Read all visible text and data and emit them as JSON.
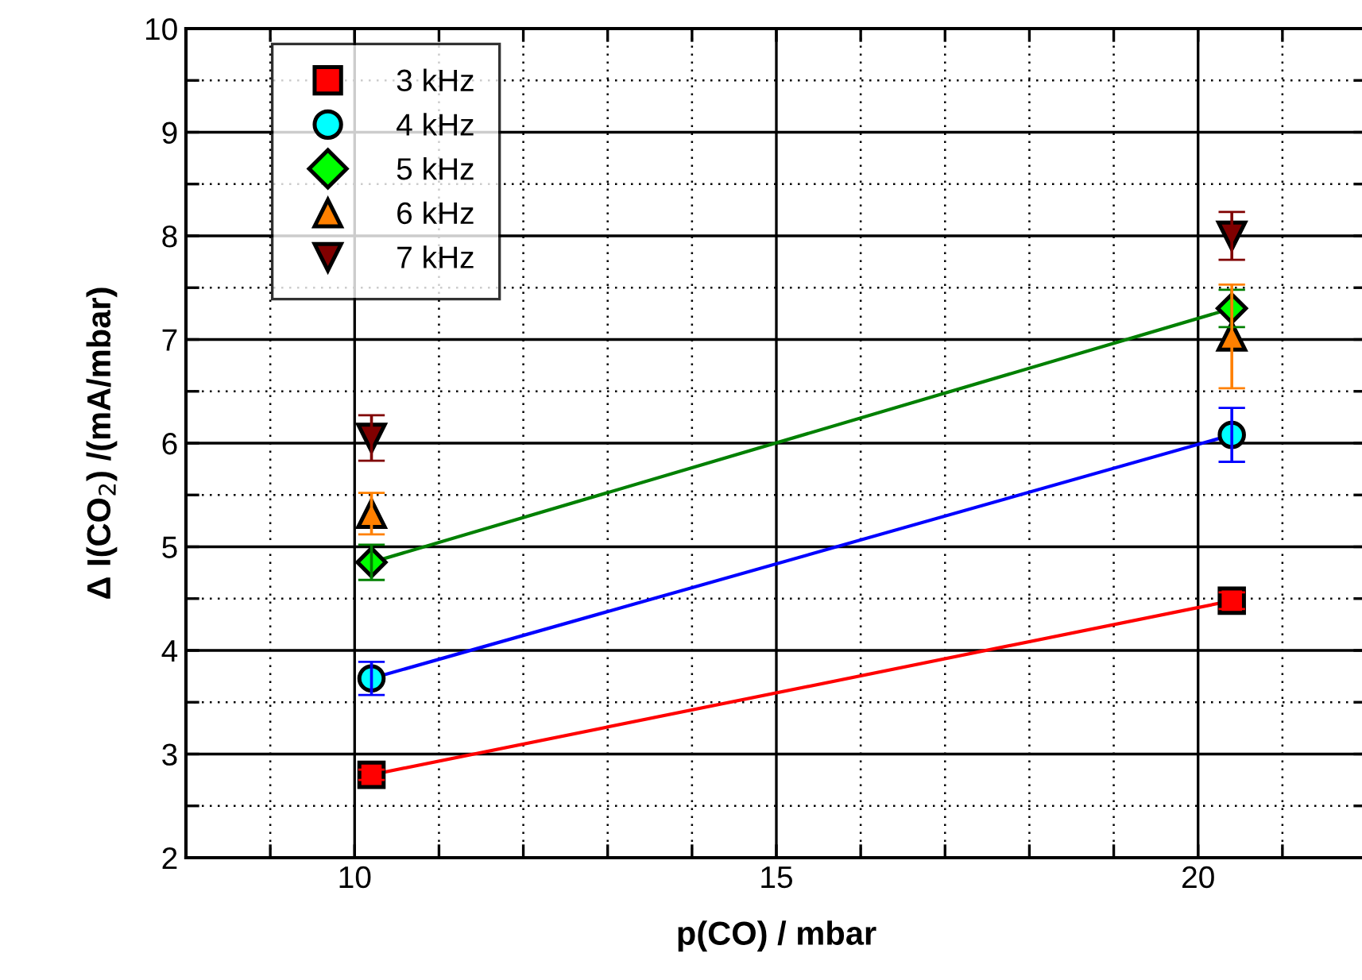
{
  "chart_data": {
    "type": "scatter",
    "xlabel": "p(CO) / mbar",
    "ylabel": "Δ I(CO$_{2}$) /(mA/mbar)",
    "xlim": [
      8,
      22
    ],
    "ylim": [
      2,
      10
    ],
    "xticks": [
      {
        "value": 9,
        "label": null
      },
      10,
      {
        "value": 11,
        "label": null
      },
      {
        "value": 12,
        "label": null
      },
      {
        "value": 13,
        "label": null
      },
      {
        "value": 14,
        "label": null
      },
      15,
      {
        "value": 16,
        "label": null
      },
      {
        "value": 17,
        "label": null
      },
      {
        "value": 18,
        "label": null
      },
      {
        "value": 19,
        "label": null
      },
      20,
      {
        "value": 21,
        "label": null
      }
    ],
    "yticks": [
      2,
      {
        "value": 2.5,
        "label": null
      },
      3,
      {
        "value": 3.5,
        "label": null
      },
      4,
      {
        "value": 4.5,
        "label": null
      },
      5,
      {
        "value": 5.5,
        "label": null
      },
      6,
      {
        "value": 6.5,
        "label": null
      },
      7,
      {
        "value": 7.5,
        "label": null
      },
      8,
      {
        "value": 8.5,
        "label": null
      },
      9,
      {
        "value": 9.5,
        "label": null
      },
      10
    ],
    "grid": true,
    "legend": "top left",
    "x": [
      10.2,
      20.4
    ],
    "series": [
      {
        "type": "line",
        "color": "#ff0000",
        "values": [
          2.8,
          4.48
        ]
      },
      {
        "type": "line",
        "color": "#0000ff",
        "values": [
          3.73,
          6.08
        ]
      },
      {
        "type": "line",
        "color": "#008000",
        "values": [
          4.85,
          7.3
        ]
      },
      {
        "name": "3 kHz",
        "color": "#ff0000",
        "marker": "square",
        "values": [
          2.8,
          4.48
        ],
        "errors": [
          0.05,
          0.08
        ]
      },
      {
        "name": "4 kHz",
        "color": "#00ffff",
        "marker": "circle",
        "values": [
          3.73,
          6.08
        ],
        "errors": [
          0.16,
          0.26
        ]
      },
      {
        "name": "5 kHz",
        "color": "#00ff00",
        "marker": "diamond",
        "values": [
          4.85,
          7.3
        ],
        "errors": [
          0.17,
          0.18
        ]
      },
      {
        "name": "6 kHz",
        "color": "#ff8000",
        "marker": "triangle",
        "values": [
          5.32,
          7.03
        ],
        "errors": [
          0.2,
          0.5
        ]
      },
      {
        "name": "7 kHz",
        "color": "#800000",
        "marker": "triangle_down",
        "values": [
          6.05,
          8.0
        ],
        "errors": [
          0.22,
          0.23
        ]
      }
    ]
  }
}
